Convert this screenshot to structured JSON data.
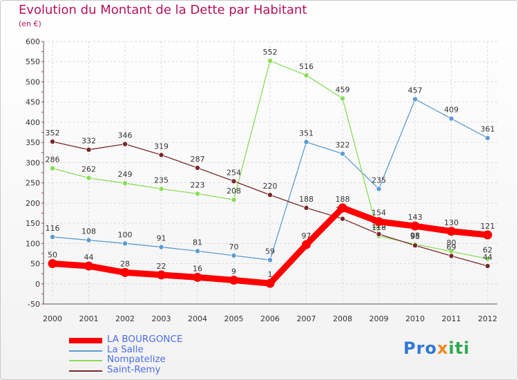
{
  "header": {
    "title": "Evolution du Montant de la Dette par Habitant",
    "unit": "(en €)"
  },
  "logo": {
    "text": "Proxiti"
  },
  "chart_data": {
    "type": "line",
    "title": "Evolution du Montant de la Dette par Habitant",
    "subtitle": "(en €)",
    "xlabel": "",
    "ylabel": "",
    "x": [
      "2000",
      "2001",
      "2002",
      "2003",
      "2004",
      "2005",
      "2006",
      "2007",
      "2008",
      "2009",
      "2010",
      "2011",
      "2012"
    ],
    "ylim": [
      -50,
      600
    ],
    "yticks": [
      -50,
      0,
      50,
      100,
      150,
      200,
      250,
      300,
      350,
      400,
      450,
      500,
      550,
      600
    ],
    "grid": true,
    "legend_position": "bottom-left",
    "series": [
      {
        "name": "LA BOURGONCE",
        "color": "#ff0000",
        "highlight": true,
        "values": [
          50,
          44,
          28,
          22,
          16,
          9,
          1,
          97,
          188,
          154,
          143,
          130,
          121
        ]
      },
      {
        "name": "La Salle",
        "color": "#5a9bd4",
        "values": [
          116,
          108,
          100,
          91,
          81,
          70,
          59,
          351,
          322,
          235,
          457,
          409,
          361
        ]
      },
      {
        "name": "Nompatelize",
        "color": "#88dd55",
        "values": [
          286,
          262,
          249,
          235,
          223,
          208,
          552,
          516,
          459,
          118,
          98,
          80,
          62
        ]
      },
      {
        "name": "Saint-Remy",
        "color": "#7a2828",
        "values": [
          352,
          332,
          346,
          319,
          287,
          254,
          220,
          188,
          161,
          123,
          95,
          69,
          44
        ]
      }
    ]
  }
}
